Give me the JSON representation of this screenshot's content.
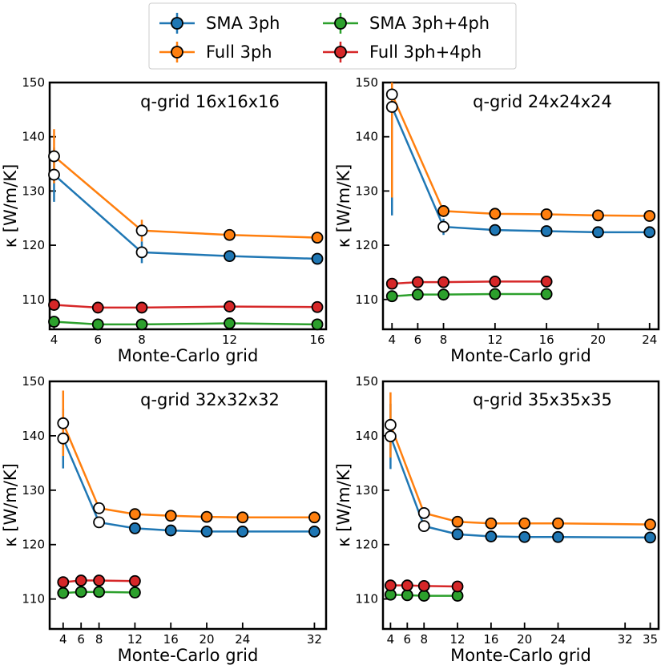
{
  "legend": [
    {
      "name": "SMA 3ph",
      "color": "#1f77b4"
    },
    {
      "name": "Full 3ph",
      "color": "#ff7f0e"
    },
    {
      "name": "SMA 3ph+4ph",
      "color": "#2ca02c"
    },
    {
      "name": "Full 3ph+4ph",
      "color": "#d62728"
    }
  ],
  "chart_data": [
    {
      "type": "line",
      "title": "q-grid 16x16x16",
      "xlabel": "Monte-Carlo grid",
      "ylabel": "κ [W/m/K]",
      "xlim": [
        3.8,
        16.4
      ],
      "ylim": [
        104.5,
        150
      ],
      "xticks": [
        4,
        6,
        8,
        12,
        16
      ],
      "yticks": [
        110,
        120,
        130,
        140,
        150
      ],
      "series": [
        {
          "name": "SMA 3ph",
          "color": "#1f77b4",
          "x": [
            4,
            8,
            12,
            16
          ],
          "y": [
            133.0,
            118.7,
            118.0,
            117.5
          ],
          "err": [
            5.0,
            2.0,
            0,
            0
          ],
          "open": [
            true,
            true,
            false,
            false
          ]
        },
        {
          "name": "Full 3ph",
          "color": "#ff7f0e",
          "x": [
            4,
            8,
            12,
            16
          ],
          "y": [
            136.4,
            122.7,
            121.9,
            121.4
          ],
          "err": [
            5.0,
            2.0,
            0,
            0
          ],
          "open": [
            true,
            true,
            false,
            false
          ]
        },
        {
          "name": "SMA 3ph+4ph",
          "color": "#2ca02c",
          "x": [
            4,
            6,
            8,
            12,
            16
          ],
          "y": [
            105.9,
            105.4,
            105.4,
            105.6,
            105.4
          ],
          "err": [
            0,
            0,
            0,
            0,
            0
          ],
          "open": [
            false,
            false,
            false,
            false,
            false
          ]
        },
        {
          "name": "Full 3ph+4ph",
          "color": "#d62728",
          "x": [
            4,
            6,
            8,
            12,
            16
          ],
          "y": [
            109.0,
            108.5,
            108.5,
            108.7,
            108.6
          ],
          "err": [
            0,
            0,
            0,
            0,
            0
          ],
          "open": [
            false,
            false,
            false,
            false,
            false
          ]
        }
      ]
    },
    {
      "type": "line",
      "title": "q-grid 24x24x24",
      "xlabel": "Monte-Carlo grid",
      "ylabel": "κ [W/m/K]",
      "xlim": [
        3.3,
        24.7
      ],
      "ylim": [
        104.5,
        150
      ],
      "xticks": [
        4,
        6,
        8,
        12,
        16,
        20,
        24
      ],
      "yticks": [
        110,
        120,
        130,
        140,
        150
      ],
      "series": [
        {
          "name": "SMA 3ph",
          "color": "#1f77b4",
          "x": [
            4,
            8,
            12,
            16,
            20,
            24
          ],
          "y": [
            145.5,
            123.4,
            122.8,
            122.6,
            122.4,
            122.4
          ],
          "err": [
            20.0,
            1.5,
            0,
            0,
            0,
            0
          ],
          "open": [
            true,
            true,
            false,
            false,
            false,
            false
          ]
        },
        {
          "name": "Full 3ph",
          "color": "#ff7f0e",
          "x": [
            4,
            8,
            12,
            16,
            20,
            24
          ],
          "y": [
            147.8,
            126.3,
            125.8,
            125.7,
            125.5,
            125.4
          ],
          "err": [
            19.0,
            0,
            0,
            0,
            0,
            0
          ],
          "open": [
            true,
            false,
            false,
            false,
            false,
            false
          ]
        },
        {
          "name": "SMA 3ph+4ph",
          "color": "#2ca02c",
          "x": [
            4,
            6,
            8,
            12,
            16
          ],
          "y": [
            110.6,
            110.9,
            110.9,
            111.0,
            111.0
          ],
          "err": [
            0,
            0,
            0,
            0,
            0
          ],
          "open": [
            false,
            false,
            false,
            false,
            false
          ]
        },
        {
          "name": "Full 3ph+4ph",
          "color": "#d62728",
          "x": [
            4,
            6,
            8,
            12,
            16
          ],
          "y": [
            112.9,
            113.2,
            113.2,
            113.3,
            113.3
          ],
          "err": [
            0,
            0,
            0,
            0,
            0
          ],
          "open": [
            false,
            false,
            false,
            false,
            false
          ]
        }
      ]
    },
    {
      "type": "line",
      "title": "q-grid 32x32x32",
      "xlabel": "Monte-Carlo grid",
      "ylabel": "κ [W/m/K]",
      "xlim": [
        2.5,
        33.3
      ],
      "ylim": [
        104.5,
        150
      ],
      "xticks": [
        4,
        6,
        8,
        12,
        16,
        20,
        24,
        32
      ],
      "yticks": [
        110,
        120,
        130,
        140,
        150
      ],
      "series": [
        {
          "name": "SMA 3ph",
          "color": "#1f77b4",
          "x": [
            4,
            8,
            12,
            16,
            20,
            24,
            32
          ],
          "y": [
            139.5,
            124.1,
            123.0,
            122.6,
            122.4,
            122.4,
            122.4
          ],
          "err": [
            5.5,
            0,
            0,
            0,
            0,
            0,
            0
          ],
          "open": [
            true,
            true,
            false,
            false,
            false,
            false,
            false
          ]
        },
        {
          "name": "Full 3ph",
          "color": "#ff7f0e",
          "x": [
            4,
            8,
            12,
            16,
            20,
            24,
            32
          ],
          "y": [
            142.3,
            126.7,
            125.6,
            125.3,
            125.1,
            125.0,
            125.0
          ],
          "err": [
            6.0,
            0,
            0,
            0,
            0,
            0,
            0
          ],
          "open": [
            true,
            true,
            false,
            false,
            false,
            false,
            false
          ]
        },
        {
          "name": "SMA 3ph+4ph",
          "color": "#2ca02c",
          "x": [
            4,
            6,
            8,
            12
          ],
          "y": [
            111.1,
            111.3,
            111.3,
            111.2
          ],
          "err": [
            0,
            0,
            0,
            0
          ],
          "open": [
            false,
            false,
            false,
            false
          ]
        },
        {
          "name": "Full 3ph+4ph",
          "color": "#d62728",
          "x": [
            4,
            6,
            8,
            12
          ],
          "y": [
            113.1,
            113.4,
            113.4,
            113.3
          ],
          "err": [
            0,
            0,
            0,
            0
          ],
          "open": [
            false,
            false,
            false,
            false
          ]
        }
      ]
    },
    {
      "type": "line",
      "title": "q-grid 35x35x35",
      "xlabel": "Monte-Carlo grid",
      "ylabel": "κ [W/m/K]",
      "xlim": [
        3.1,
        36.0
      ],
      "ylim": [
        104.5,
        150
      ],
      "xticks": [
        4,
        6,
        8,
        12,
        16,
        20,
        24,
        32,
        35
      ],
      "yticks": [
        110,
        120,
        130,
        140,
        150
      ],
      "series": [
        {
          "name": "SMA 3ph",
          "color": "#1f77b4",
          "x": [
            4,
            8,
            12,
            16,
            20,
            24,
            35
          ],
          "y": [
            139.9,
            123.4,
            121.9,
            121.5,
            121.4,
            121.4,
            121.3
          ],
          "err": [
            6.0,
            0,
            0,
            0,
            0,
            0,
            0
          ],
          "open": [
            true,
            true,
            false,
            false,
            false,
            false,
            false
          ]
        },
        {
          "name": "Full 3ph",
          "color": "#ff7f0e",
          "x": [
            4,
            8,
            12,
            16,
            20,
            24,
            35
          ],
          "y": [
            142.0,
            125.8,
            124.2,
            123.9,
            123.9,
            123.9,
            123.7
          ],
          "err": [
            6.0,
            0,
            0,
            0,
            0,
            0,
            0
          ],
          "open": [
            true,
            true,
            false,
            false,
            false,
            false,
            false
          ]
        },
        {
          "name": "SMA 3ph+4ph",
          "color": "#2ca02c",
          "x": [
            4,
            6,
            8,
            12
          ],
          "y": [
            110.8,
            110.7,
            110.6,
            110.6
          ],
          "err": [
            0,
            0,
            0,
            0
          ],
          "open": [
            false,
            false,
            false,
            false
          ]
        },
        {
          "name": "Full 3ph+4ph",
          "color": "#d62728",
          "x": [
            4,
            6,
            8,
            12
          ],
          "y": [
            112.5,
            112.5,
            112.4,
            112.3
          ],
          "err": [
            0,
            0,
            0,
            0
          ],
          "open": [
            false,
            false,
            false,
            false
          ]
        }
      ]
    }
  ]
}
